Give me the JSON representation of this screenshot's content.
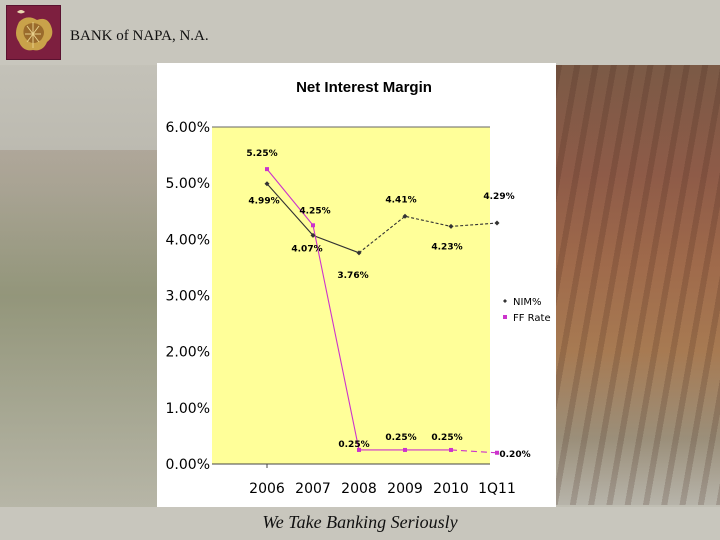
{
  "header": {
    "bank_name": "BANK of NAPA, N.A."
  },
  "footer": {
    "tagline": "We Take Banking Seriously"
  },
  "colors": {
    "plot_bg": "#ffff99",
    "nim_series": "#333333",
    "ff_series": "#cc33cc",
    "header_bg": "#c8c6bd",
    "logo_bg": "#7d1f3f"
  },
  "chart_data": {
    "type": "line",
    "title": "Net Interest Margin",
    "categories": [
      "2006",
      "2007",
      "2008",
      "2009",
      "2010",
      "1Q11"
    ],
    "xlabel": "",
    "ylabel": "",
    "ylim": [
      0,
      6
    ],
    "yticks": [
      "0.00%",
      "1.00%",
      "2.00%",
      "3.00%",
      "4.00%",
      "5.00%",
      "6.00%"
    ],
    "legend_position": "right",
    "series": [
      {
        "name": "NIM%",
        "values": [
          4.99,
          4.07,
          3.76,
          4.41,
          4.23,
          4.29
        ],
        "labels": [
          "4.99%",
          "4.07%",
          "3.76%",
          "4.41%",
          "4.23%",
          "4.29%"
        ]
      },
      {
        "name": "FF Rate",
        "values": [
          5.25,
          4.25,
          0.25,
          0.25,
          0.25,
          0.2
        ],
        "labels": [
          "5.25%",
          "4.25%",
          "0.25%",
          "0.25%",
          "0.25%",
          "0.20%"
        ]
      }
    ]
  }
}
